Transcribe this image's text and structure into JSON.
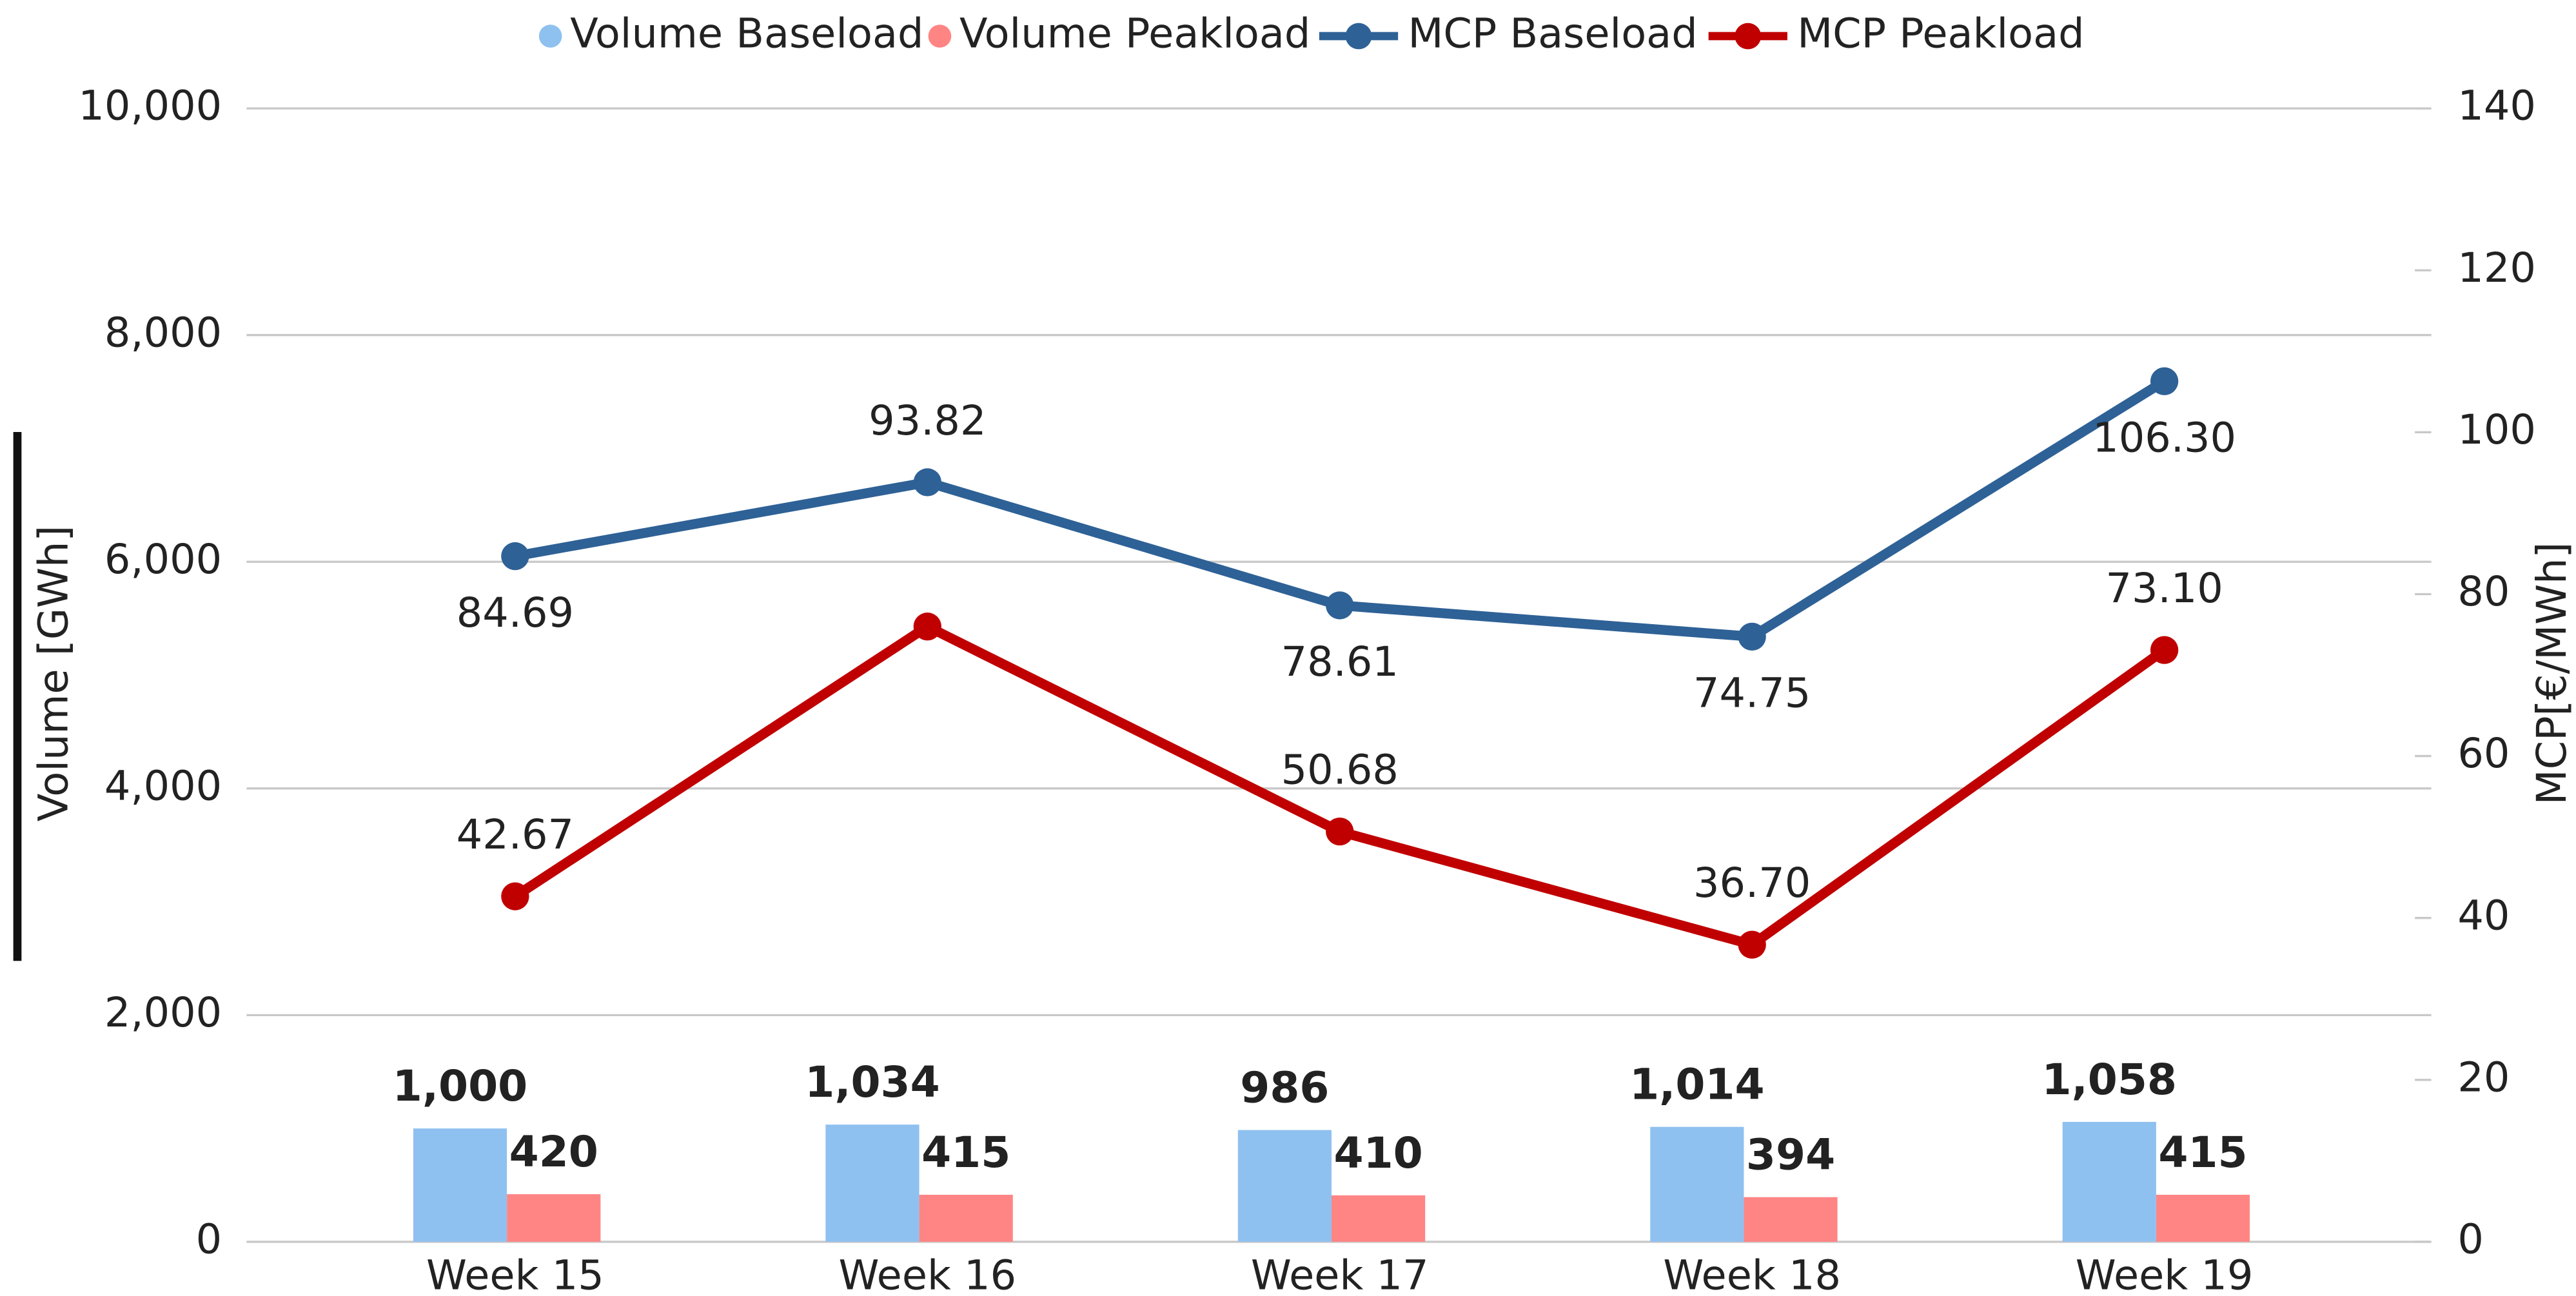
{
  "chart_data": {
    "type": "bar",
    "categories": [
      "Week 15",
      "Week 16",
      "Week 17",
      "Week 18",
      "Week 19"
    ],
    "ylabel": "Volume [GWh]",
    "y2label": "MCP[€/MWh]",
    "ylim": [
      0,
      10000
    ],
    "yticks": [
      0,
      {
        "value": 2000,
        "label": "2,000"
      },
      {
        "value": 4000,
        "label": "4,000"
      },
      {
        "value": 6000,
        "label": "6,000"
      },
      {
        "value": 8000,
        "label": "8,000"
      },
      {
        "value": 10000,
        "label": "10,000"
      }
    ],
    "y2lim": [
      0,
      140
    ],
    "y2ticks": [
      0,
      20,
      40,
      60,
      80,
      100,
      120,
      140
    ],
    "grid": true,
    "legend": "top",
    "series": [
      {
        "name": "Volume Baseload",
        "type": "bar",
        "color": "#8fc1f0",
        "label_color": "#2e6196",
        "values": [
          1000,
          1034,
          986,
          1014,
          1058
        ],
        "value_labels": [
          "1,000",
          "1,034",
          "986",
          "1,014",
          "1,058"
        ]
      },
      {
        "name": "Volume Peakload",
        "type": "bar",
        "color": "#ff8585",
        "label_color": "#c00000",
        "values": [
          420,
          415,
          410,
          394,
          415
        ]
      },
      {
        "name": "MCP Baseload",
        "type": "line",
        "axis": "y2",
        "color": "#2e6196",
        "values": [
          84.69,
          93.82,
          78.61,
          74.75,
          106.3
        ],
        "value_labels": [
          "84.69",
          "93.82",
          "78.61",
          "74.75",
          "106.30"
        ]
      },
      {
        "name": "MCP Peakload",
        "type": "line",
        "axis": "y2",
        "color": "#c00000",
        "values": [
          42.67,
          76,
          50.68,
          36.7,
          73.1
        ],
        "value_labels": [
          "42.67",
          null,
          "50.68",
          "36.70",
          "73.10"
        ]
      }
    ]
  }
}
